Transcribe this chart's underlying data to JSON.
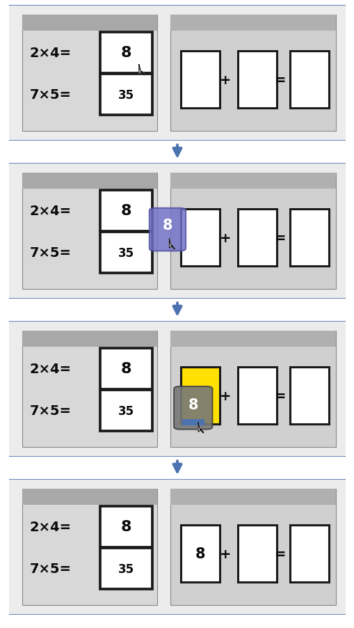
{
  "fig_width": 5.1,
  "fig_height": 9.03,
  "dpi": 100,
  "bg_color": "#ffffff",
  "outer_bg": "#ececec",
  "outer_border": "#4d72b0",
  "outer_border_lw": 4.0,
  "pim_left_bg": "#d8d8d8",
  "pim_left_header": "#a8a8a8",
  "pim_right_bg": "#d0d0d0",
  "pim_right_header": "#b0b0b0",
  "slot_white": "#ffffff",
  "slot_yellow": "#ffe000",
  "slot_border": "#1a1a1a",
  "slot_border_lw": 2.2,
  "text_dark": "#0a0a0a",
  "bubble_purple": "#7070c8",
  "bubble_gray": "#787878",
  "blue_strip": "#4d72b0",
  "arrow_color": "#4d72b0",
  "frames": [
    {
      "id": 1,
      "cursor_on_8": true,
      "drag_mid": false,
      "drag_on_slot": false,
      "slot1_yellow": false,
      "slot1_filled": false
    },
    {
      "id": 2,
      "cursor_on_8": false,
      "drag_mid": true,
      "drag_on_slot": false,
      "slot1_yellow": false,
      "slot1_filled": false
    },
    {
      "id": 3,
      "cursor_on_8": false,
      "drag_mid": false,
      "drag_on_slot": true,
      "slot1_yellow": true,
      "slot1_filled": false
    },
    {
      "id": 4,
      "cursor_on_8": false,
      "drag_mid": false,
      "drag_on_slot": false,
      "slot1_yellow": false,
      "slot1_filled": true
    }
  ]
}
